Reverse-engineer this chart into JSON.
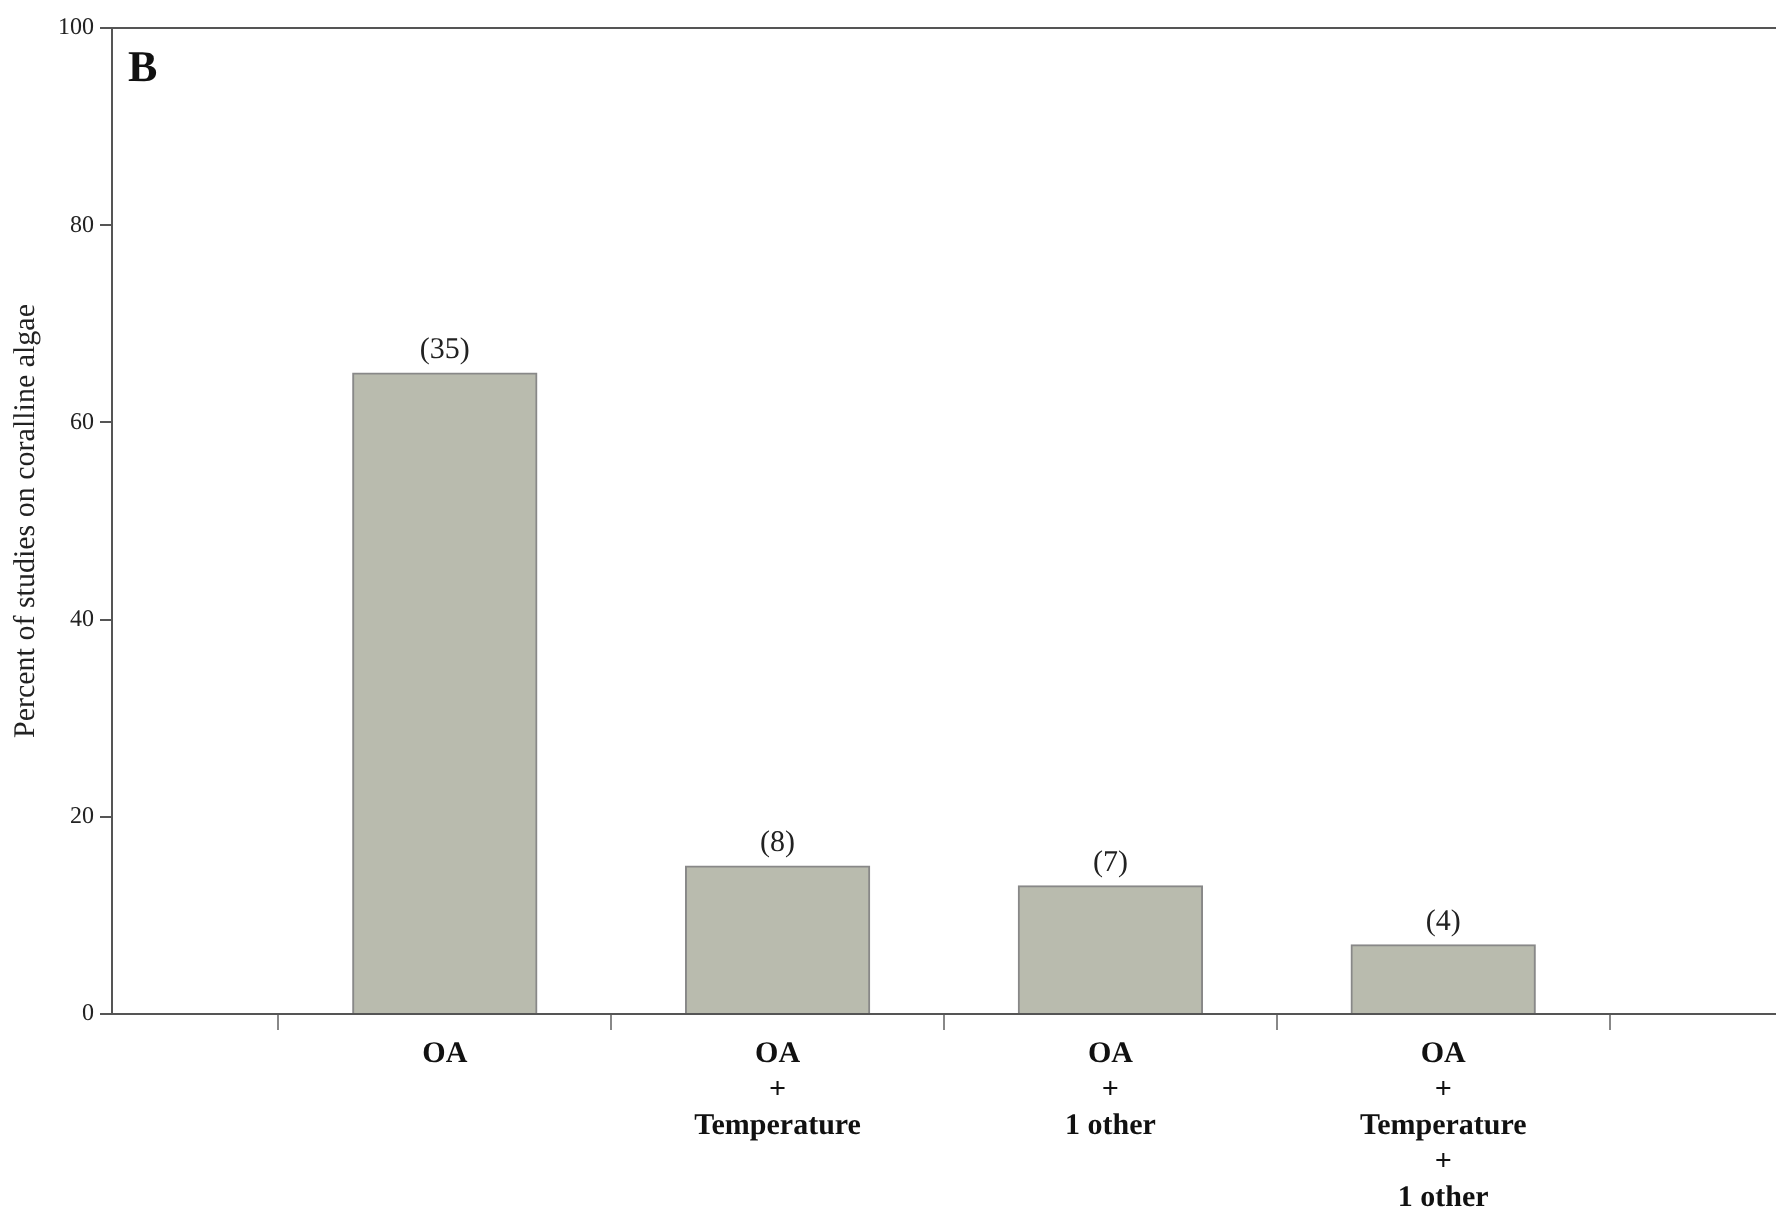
{
  "chart_data": {
    "type": "bar",
    "ylabel": "Percent of studies on coralline algae",
    "categories": [
      "OA",
      "OA\n+\nTemperature",
      "OA\n+\n1 other",
      "OA\n+\nTemperature\n+\n1 other"
    ],
    "values": [
      65,
      15,
      13,
      7
    ],
    "color": "#b9bbae",
    "ylim": [
      0,
      100
    ],
    "yticks": [
      0,
      20,
      40,
      60,
      80,
      100
    ],
    "grid": false,
    "legend": false,
    "annotations": [
      "B",
      {
        "text": "(35)",
        "x": "OA",
        "y": 65
      },
      {
        "text": "(8)",
        "x": "OA\n+\nTemperature",
        "y": 15
      },
      {
        "text": "(7)",
        "x": "OA\n+\n1 other",
        "y": 13
      },
      {
        "text": "(4)",
        "x": "OA\n+\nTemperature\n+\n1 other",
        "y": 7
      }
    ]
  }
}
